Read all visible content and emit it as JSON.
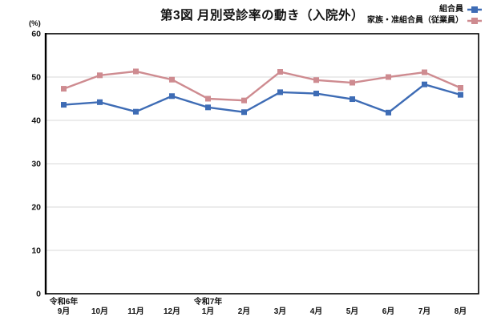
{
  "chart": {
    "title": "第3図 月別受診率の動き（入院外）",
    "y_unit_label": "(%)"
  },
  "chart_data": {
    "type": "line",
    "title": "第3図 月別受診率の動き（入院外）",
    "ylabel": "(%)",
    "xlabel": "",
    "ylim": [
      0,
      60
    ],
    "yticks": [
      0,
      10,
      20,
      30,
      40,
      50,
      60
    ],
    "grid": true,
    "grid_color": "#d9d9d9",
    "axis_color": "#000000",
    "legend_position": "top-right",
    "categories": [
      "9月",
      "10月",
      "11月",
      "12月",
      "1月",
      "2月",
      "3月",
      "4月",
      "5月",
      "6月",
      "7月",
      "8月"
    ],
    "era_labels": [
      {
        "text": "令和6年",
        "index": 0
      },
      {
        "text": "令和7年",
        "index": 4
      }
    ],
    "series": [
      {
        "name": "組合員",
        "color": "#3e6cb5",
        "marker": "square",
        "values": [
          43.6,
          44.2,
          42.0,
          45.6,
          43.0,
          41.9,
          46.5,
          46.2,
          44.9,
          41.8,
          48.3,
          45.9
        ]
      },
      {
        "name": "家族・准組合員（従業員）",
        "color": "#ce8b90",
        "marker": "square",
        "values": [
          47.3,
          50.4,
          51.3,
          49.4,
          45.0,
          44.6,
          51.2,
          49.3,
          48.7,
          50.0,
          51.1,
          47.5
        ]
      }
    ]
  }
}
